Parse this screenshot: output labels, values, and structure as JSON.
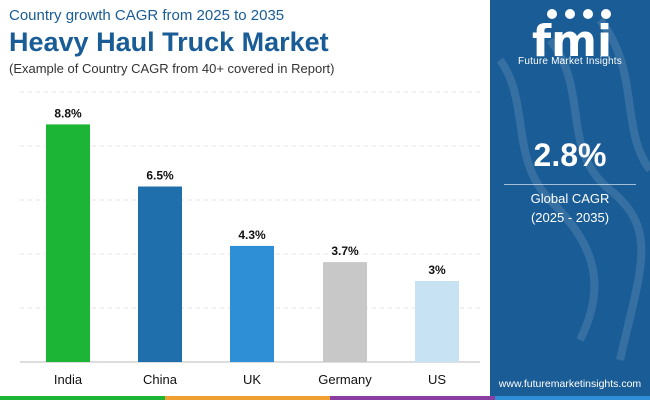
{
  "header": {
    "subtitle": "Country growth CAGR from 2025 to 2035",
    "title": "Heavy Haul Truck Market",
    "note": "(Example of Country CAGR from 40+ covered in Report)"
  },
  "side_panel": {
    "brand": "Future Market Insights",
    "logo_text": "fmi",
    "global_cagr_value": "2.8%",
    "global_cagr_label": "Global CAGR",
    "global_cagr_period": "(2025 - 2035)",
    "url": "www.futuremarketinsights.com",
    "background_color": "#1a5c96"
  },
  "chart_data": {
    "type": "bar",
    "categories": [
      "India",
      "China",
      "UK",
      "Germany",
      "US"
    ],
    "values": [
      8.8,
      6.5,
      4.3,
      3.7,
      3.0
    ],
    "value_labels": [
      "8.8%",
      "6.5%",
      "4.3%",
      "3.7%",
      "3%"
    ],
    "colors": [
      "#1db535",
      "#1f6fad",
      "#2f8fd6",
      "#c8c8c8",
      "#c6e2f3"
    ],
    "ylim": [
      0,
      10
    ],
    "grid": true,
    "xlabel": "",
    "ylabel": ""
  },
  "bottom_strip_colors": [
    "#1db535",
    "#f0a030",
    "#8a3fa0",
    "#2f8fd6"
  ]
}
